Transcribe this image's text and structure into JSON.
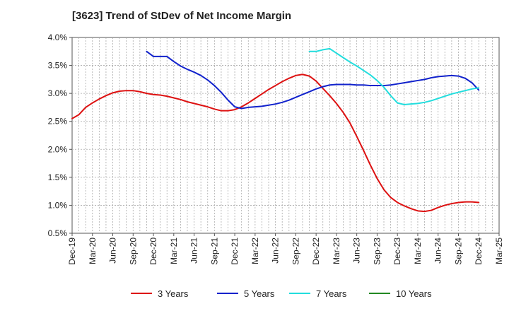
{
  "chart_data": {
    "type": "line",
    "title": "[3623]  Trend of StDev of Net Income Margin",
    "xlabel": "",
    "ylabel": "",
    "y_range": [
      0.005,
      0.04
    ],
    "y_ticks": [
      {
        "value": 0.04,
        "label": "4.0%"
      },
      {
        "value": 0.035,
        "label": "3.5%"
      },
      {
        "value": 0.03,
        "label": "3.0%"
      },
      {
        "value": 0.025,
        "label": "2.5%"
      },
      {
        "value": 0.02,
        "label": "2.0%"
      },
      {
        "value": 0.015,
        "label": "1.5%"
      },
      {
        "value": 0.01,
        "label": "1.0%"
      },
      {
        "value": 0.005,
        "label": "0.5%"
      }
    ],
    "x_range": [
      "2019-12",
      "2025-03"
    ],
    "x_ticks": [
      "Dec-19",
      "Mar-20",
      "Jun-20",
      "Sep-20",
      "Dec-20",
      "Mar-21",
      "Jun-21",
      "Sep-21",
      "Dec-21",
      "Mar-22",
      "Jun-22",
      "Sep-22",
      "Dec-22",
      "Mar-23",
      "Jun-23",
      "Sep-23",
      "Dec-23",
      "Mar-24",
      "Jun-24",
      "Sep-24",
      "Dec-24",
      "Mar-25"
    ],
    "grid": true,
    "legend_position": "bottom",
    "series": [
      {
        "name": "3 Years",
        "color": "#dd1111",
        "points": [
          [
            "2019-12",
            0.0255
          ],
          [
            "2020-01",
            0.0262
          ],
          [
            "2020-02",
            0.0275
          ],
          [
            "2020-03",
            0.0283
          ],
          [
            "2020-04",
            0.029
          ],
          [
            "2020-05",
            0.0296
          ],
          [
            "2020-06",
            0.0301
          ],
          [
            "2020-07",
            0.0304
          ],
          [
            "2020-08",
            0.0305
          ],
          [
            "2020-09",
            0.0305
          ],
          [
            "2020-10",
            0.0303
          ],
          [
            "2020-11",
            0.03
          ],
          [
            "2020-12",
            0.0298
          ],
          [
            "2021-01",
            0.0297
          ],
          [
            "2021-02",
            0.0295
          ],
          [
            "2021-03",
            0.0292
          ],
          [
            "2021-04",
            0.0289
          ],
          [
            "2021-05",
            0.0285
          ],
          [
            "2021-06",
            0.0282
          ],
          [
            "2021-07",
            0.0279
          ],
          [
            "2021-08",
            0.0276
          ],
          [
            "2021-09",
            0.0272
          ],
          [
            "2021-10",
            0.0269
          ],
          [
            "2021-11",
            0.0269
          ],
          [
            "2021-12",
            0.0271
          ],
          [
            "2022-01",
            0.0276
          ],
          [
            "2022-02",
            0.0283
          ],
          [
            "2022-03",
            0.0291
          ],
          [
            "2022-04",
            0.0299
          ],
          [
            "2022-05",
            0.0307
          ],
          [
            "2022-06",
            0.0314
          ],
          [
            "2022-07",
            0.0321
          ],
          [
            "2022-08",
            0.0327
          ],
          [
            "2022-09",
            0.0332
          ],
          [
            "2022-10",
            0.0334
          ],
          [
            "2022-11",
            0.0331
          ],
          [
            "2022-12",
            0.0322
          ],
          [
            "2023-01",
            0.0309
          ],
          [
            "2023-02",
            0.0296
          ],
          [
            "2023-03",
            0.0282
          ],
          [
            "2023-04",
            0.0266
          ],
          [
            "2023-05",
            0.0247
          ],
          [
            "2023-06",
            0.0223
          ],
          [
            "2023-07",
            0.0198
          ],
          [
            "2023-08",
            0.0172
          ],
          [
            "2023-09",
            0.0148
          ],
          [
            "2023-10",
            0.0128
          ],
          [
            "2023-11",
            0.0114
          ],
          [
            "2023-12",
            0.0105
          ],
          [
            "2024-01",
            0.0099
          ],
          [
            "2024-02",
            0.0094
          ],
          [
            "2024-03",
            0.009
          ],
          [
            "2024-04",
            0.0089
          ],
          [
            "2024-05",
            0.0091
          ],
          [
            "2024-06",
            0.0096
          ],
          [
            "2024-07",
            0.01
          ],
          [
            "2024-08",
            0.0103
          ],
          [
            "2024-09",
            0.0105
          ],
          [
            "2024-10",
            0.0106
          ],
          [
            "2024-11",
            0.0106
          ],
          [
            "2024-12",
            0.0105
          ]
        ]
      },
      {
        "name": "5 Years",
        "color": "#1122cc",
        "points": [
          [
            "2020-11",
            0.0375
          ],
          [
            "2020-12",
            0.0366
          ],
          [
            "2021-01",
            0.0366
          ],
          [
            "2021-02",
            0.0366
          ],
          [
            "2021-03",
            0.0357
          ],
          [
            "2021-04",
            0.0349
          ],
          [
            "2021-05",
            0.0343
          ],
          [
            "2021-06",
            0.0338
          ],
          [
            "2021-07",
            0.0332
          ],
          [
            "2021-08",
            0.0324
          ],
          [
            "2021-09",
            0.0314
          ],
          [
            "2021-10",
            0.0302
          ],
          [
            "2021-11",
            0.0288
          ],
          [
            "2021-12",
            0.0276
          ],
          [
            "2022-01",
            0.0273
          ],
          [
            "2022-02",
            0.0275
          ],
          [
            "2022-03",
            0.0276
          ],
          [
            "2022-04",
            0.0277
          ],
          [
            "2022-05",
            0.0279
          ],
          [
            "2022-06",
            0.0281
          ],
          [
            "2022-07",
            0.0284
          ],
          [
            "2022-08",
            0.0288
          ],
          [
            "2022-09",
            0.0293
          ],
          [
            "2022-10",
            0.0298
          ],
          [
            "2022-11",
            0.0303
          ],
          [
            "2022-12",
            0.0308
          ],
          [
            "2023-01",
            0.0312
          ],
          [
            "2023-02",
            0.0315
          ],
          [
            "2023-03",
            0.0316
          ],
          [
            "2023-04",
            0.0316
          ],
          [
            "2023-05",
            0.0316
          ],
          [
            "2023-06",
            0.0315
          ],
          [
            "2023-07",
            0.0315
          ],
          [
            "2023-08",
            0.0314
          ],
          [
            "2023-09",
            0.0314
          ],
          [
            "2023-10",
            0.0314
          ],
          [
            "2023-11",
            0.0315
          ],
          [
            "2023-12",
            0.0317
          ],
          [
            "2024-01",
            0.0319
          ],
          [
            "2024-02",
            0.0321
          ],
          [
            "2024-03",
            0.0323
          ],
          [
            "2024-04",
            0.0325
          ],
          [
            "2024-05",
            0.0328
          ],
          [
            "2024-06",
            0.033
          ],
          [
            "2024-07",
            0.0331
          ],
          [
            "2024-08",
            0.0332
          ],
          [
            "2024-09",
            0.0331
          ],
          [
            "2024-10",
            0.0327
          ],
          [
            "2024-11",
            0.0319
          ],
          [
            "2024-12",
            0.0306
          ]
        ]
      },
      {
        "name": "7 Years",
        "color": "#22dddd",
        "points": [
          [
            "2022-11",
            0.0375
          ],
          [
            "2022-12",
            0.0375
          ],
          [
            "2023-01",
            0.0378
          ],
          [
            "2023-02",
            0.038
          ],
          [
            "2023-03",
            0.0372
          ],
          [
            "2023-04",
            0.0364
          ],
          [
            "2023-05",
            0.0356
          ],
          [
            "2023-06",
            0.0349
          ],
          [
            "2023-07",
            0.0341
          ],
          [
            "2023-08",
            0.0333
          ],
          [
            "2023-09",
            0.0323
          ],
          [
            "2023-10",
            0.0311
          ],
          [
            "2023-11",
            0.0296
          ],
          [
            "2023-12",
            0.0283
          ],
          [
            "2024-01",
            0.028
          ],
          [
            "2024-02",
            0.0281
          ],
          [
            "2024-03",
            0.0282
          ],
          [
            "2024-04",
            0.0284
          ],
          [
            "2024-05",
            0.0287
          ],
          [
            "2024-06",
            0.0291
          ],
          [
            "2024-07",
            0.0295
          ],
          [
            "2024-08",
            0.0299
          ],
          [
            "2024-09",
            0.0302
          ],
          [
            "2024-10",
            0.0305
          ],
          [
            "2024-11",
            0.0308
          ],
          [
            "2024-12",
            0.031
          ]
        ]
      },
      {
        "name": "10 Years",
        "color": "#228822",
        "points": []
      }
    ]
  }
}
